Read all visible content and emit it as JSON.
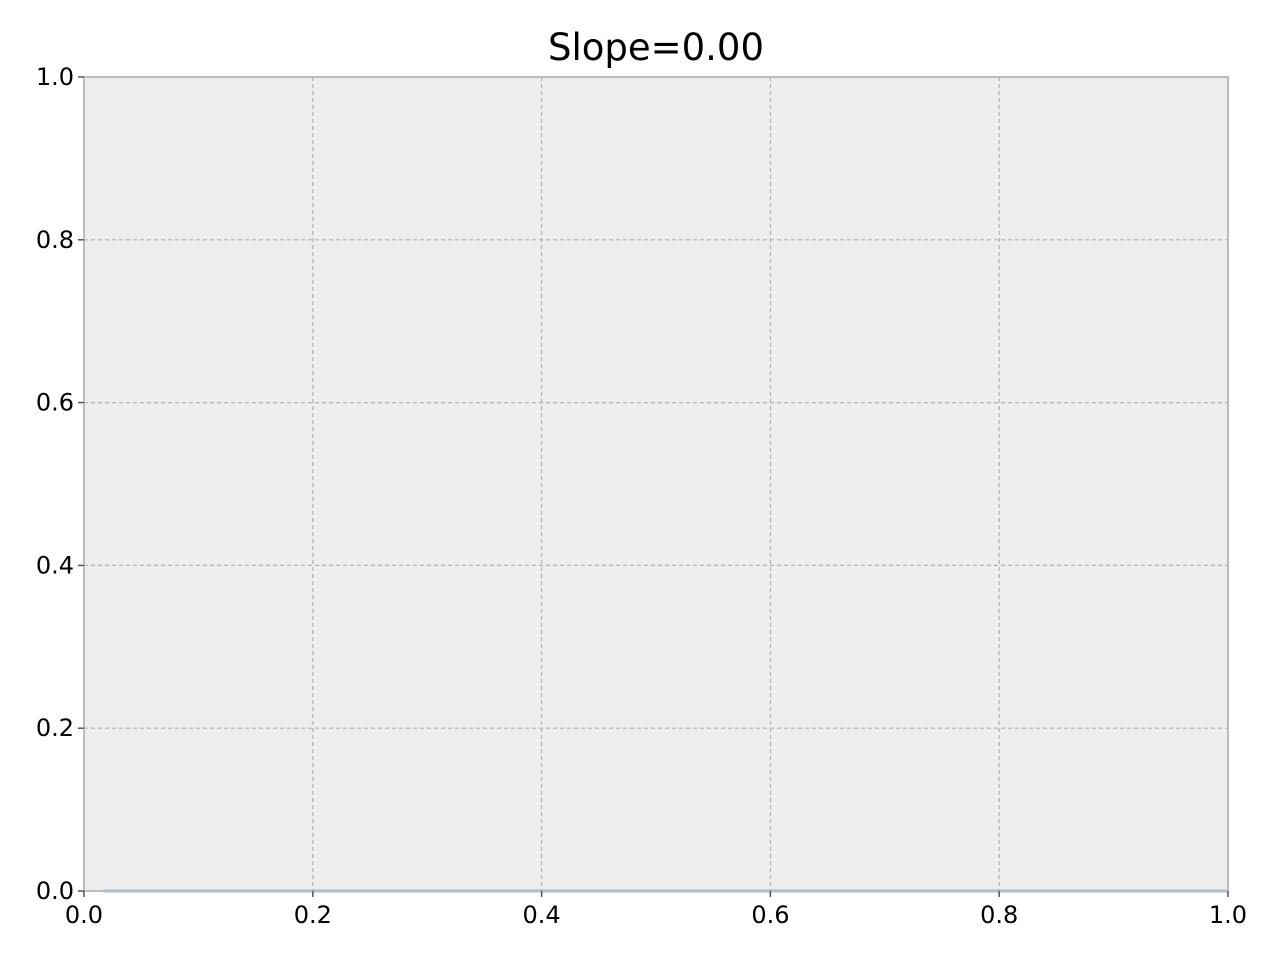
{
  "chart_data": {
    "type": "line",
    "title": "Slope=0.00",
    "xlabel": "",
    "ylabel": "",
    "xlim": [
      0.0,
      1.0
    ],
    "ylim": [
      0.0,
      1.0
    ],
    "x_ticks": [
      "0.0",
      "0.2",
      "0.4",
      "0.6",
      "0.8",
      "1.0"
    ],
    "y_ticks": [
      "0.0",
      "0.2",
      "0.4",
      "0.6",
      "0.8",
      "1.0"
    ],
    "grid": true,
    "legend": "none",
    "series": [
      {
        "x": [
          0.017,
          1.0
        ],
        "y": [
          0.0,
          0.0
        ],
        "color": "#348abd"
      }
    ],
    "colors": {
      "plot_background": "#eeeeee",
      "frame": "#bcbcbc",
      "grid": "#b0b0b0",
      "line": "#348abd"
    }
  }
}
